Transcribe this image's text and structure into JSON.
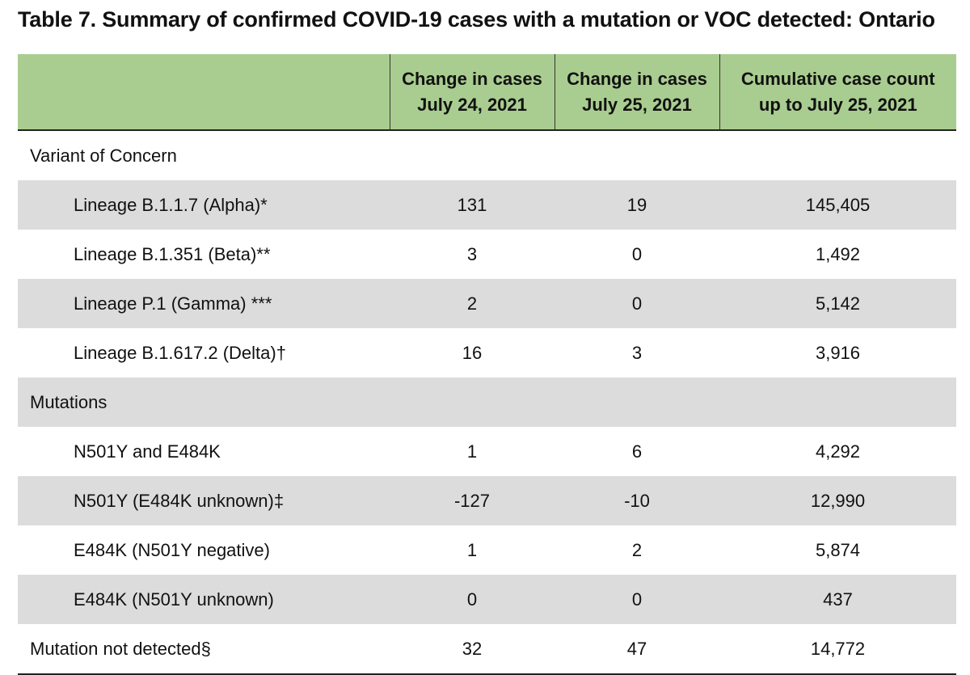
{
  "title": "Table 7. Summary of confirmed COVID-19 cases with a mutation or VOC detected: Ontario",
  "header": {
    "col0": "",
    "col1_line1": "Change in cases",
    "col1_line2": "July 24, 2021",
    "col2_line1": "Change in cases",
    "col2_line2": "July 25, 2021",
    "col3_line1": "Cumulative case count",
    "col3_line2": "up to July 25, 2021"
  },
  "rows": [
    {
      "label": "Variant of Concern",
      "c1": "",
      "c2": "",
      "c3": ""
    },
    {
      "label": "Lineage B.1.1.7 (Alpha)*",
      "c1": "131",
      "c2": "19",
      "c3": "145,405"
    },
    {
      "label": "Lineage B.1.351 (Beta)**",
      "c1": "3",
      "c2": "0",
      "c3": "1,492"
    },
    {
      "label": "Lineage P.1 (Gamma) ***",
      "c1": "2",
      "c2": "0",
      "c3": "5,142"
    },
    {
      "label": "Lineage B.1.617.2 (Delta)†",
      "c1": "16",
      "c2": "3",
      "c3": "3,916"
    },
    {
      "label": "Mutations",
      "c1": "",
      "c2": "",
      "c3": ""
    },
    {
      "label": "N501Y and E484K",
      "c1": "1",
      "c2": "6",
      "c3": "4,292"
    },
    {
      "label": "N501Y (E484K unknown)‡",
      "c1": "-127",
      "c2": "-10",
      "c3": "12,990"
    },
    {
      "label": "E484K (N501Y negative)",
      "c1": "1",
      "c2": "2",
      "c3": "5,874"
    },
    {
      "label": "E484K (N501Y unknown)",
      "c1": "0",
      "c2": "0",
      "c3": "437"
    },
    {
      "label": "Mutation not detected§",
      "c1": "32",
      "c2": "47",
      "c3": "14,772"
    }
  ],
  "colors": {
    "header_bg": "#a9cd90",
    "shaded_row_bg": "#dcdcdc"
  }
}
